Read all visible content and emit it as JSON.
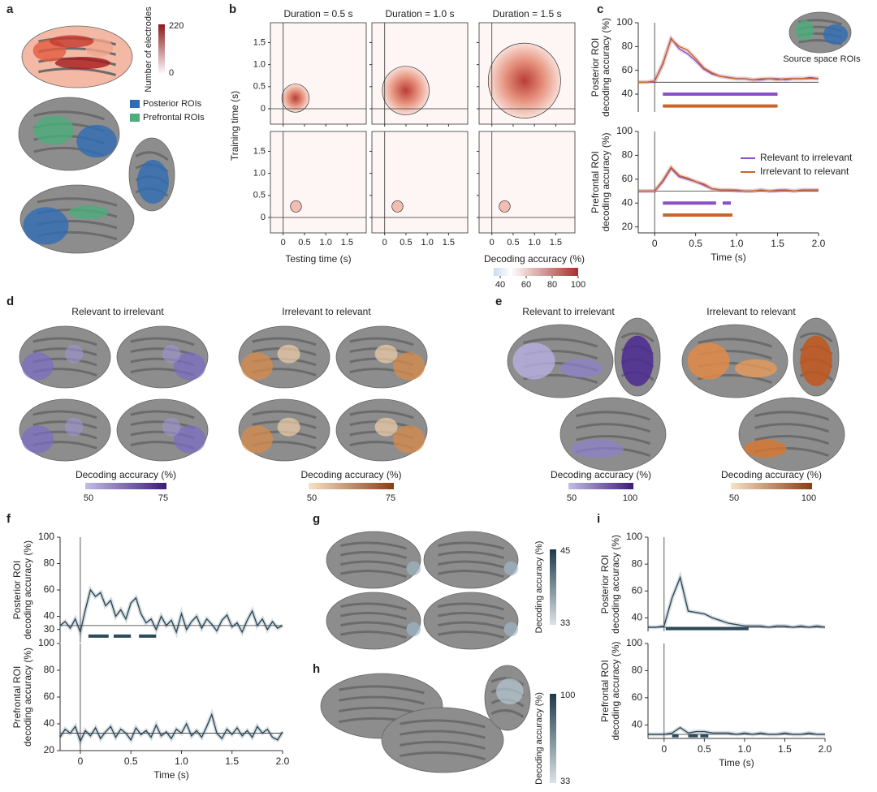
{
  "panel_labels": [
    "a",
    "b",
    "c",
    "d",
    "e",
    "f",
    "g",
    "h",
    "i"
  ],
  "panel_a": {
    "colorbar": {
      "label": "Number of electrodes",
      "ticks": [
        220,
        0
      ]
    },
    "legend": [
      "Posterior ROIs",
      "Prefrontal ROIs"
    ]
  },
  "panel_c_inset": "Source space ROIs",
  "panel_d": {
    "titles": [
      "Relevant to irrelevant",
      "Irrelevant to relevant"
    ],
    "colorbars": [
      {
        "label": "Decoding accuracy (%)",
        "ticks": [
          50,
          75
        ]
      },
      {
        "label": "Decoding accuracy (%)",
        "ticks": [
          50,
          75
        ]
      }
    ]
  },
  "panel_e": {
    "titles": [
      "Relevant to irrelevant",
      "Irrelevant to relevant"
    ],
    "colorbars": [
      {
        "label": "Decoding accuracy (%)",
        "ticks": [
          50,
          100
        ]
      },
      {
        "label": "Decoding accuracy (%)",
        "ticks": [
          50,
          100
        ]
      }
    ]
  },
  "panel_g": {
    "colorbar": {
      "label": "Decoding accuracy (%)",
      "ticks": [
        45,
        33
      ]
    }
  },
  "panel_h": {
    "colorbar": {
      "label": "Decoding accuracy (%)",
      "ticks": [
        100,
        33
      ]
    }
  },
  "chart_data": [
    {
      "type": "heatmap",
      "titles": [
        "Duration = 0.5 s",
        "Duration = 1.0 s",
        "Duration = 1.5 s"
      ],
      "xlabel": "Testing time (s)",
      "ylabel": "Training time (s)",
      "xlim": [
        -0.3,
        1.95
      ],
      "ylim": [
        -0.35,
        1.95
      ],
      "xticks": [
        0,
        0.5,
        {
          "value": 1,
          "label": "1.0"
        },
        1.5
      ],
      "yticks": [
        0,
        0.5,
        {
          "value": 1,
          "label": "1.0"
        },
        1.5
      ],
      "colorbar": {
        "label": "Decoding accuracy (%)",
        "lim": [
          35,
          100
        ],
        "ticks": [
          40,
          60,
          80,
          100
        ]
      }
    },
    {
      "type": "line",
      "ylabel": [
        "Posterior ROI",
        "decoding accuracy (%)"
      ],
      "xlim": [
        -0.2,
        2.0
      ],
      "ylim": [
        25,
        100
      ],
      "yticks": [
        40,
        60,
        80,
        100
      ],
      "chance": 50,
      "onset": 0,
      "x": [
        -0.2,
        -0.1,
        0,
        0.1,
        0.2,
        0.3,
        0.4,
        0.5,
        0.6,
        0.7,
        0.8,
        0.9,
        1.0,
        1.1,
        1.2,
        1.3,
        1.4,
        1.5,
        1.6,
        1.7,
        1.8,
        1.9,
        2.0
      ],
      "series": [
        {
          "name": "Relevant to irrelevant",
          "color": "#8b4fc7",
          "values": [
            50,
            50,
            51,
            65,
            87,
            78,
            74,
            68,
            61,
            57,
            55,
            54,
            53,
            53,
            52,
            52,
            53,
            53,
            52,
            53,
            53,
            54,
            53
          ]
        },
        {
          "name": "Irrelevant to relevant",
          "color": "#c8652a",
          "values": [
            50,
            50,
            51,
            66,
            86,
            80,
            77,
            70,
            62,
            58,
            55,
            54,
            53,
            53,
            52,
            53,
            53,
            52,
            53,
            53,
            53,
            53,
            53
          ]
        }
      ],
      "significance": [
        {
          "color": "#8b4fc7",
          "y": 40,
          "spans": [
            [
              0.1,
              1.5
            ]
          ]
        },
        {
          "color": "#c8652a",
          "y": 30,
          "spans": [
            [
              0.1,
              1.5
            ]
          ]
        }
      ]
    },
    {
      "type": "line",
      "ylabel": [
        "Prefrontal ROI",
        "decoding accuracy (%)"
      ],
      "xlim": [
        -0.2,
        2.0
      ],
      "ylim": [
        15,
        100
      ],
      "yticks": [
        20,
        40,
        60,
        80,
        100
      ],
      "chance": 50,
      "onset": 0,
      "xticks": [
        0,
        0.5,
        {
          "value": 1,
          "label": "1.0"
        },
        1.5,
        {
          "value": 2,
          "label": "2.0"
        }
      ],
      "xlabel": "Time (s)",
      "legend": true,
      "x": [
        -0.2,
        -0.1,
        0,
        0.1,
        0.2,
        0.3,
        0.4,
        0.5,
        0.6,
        0.7,
        0.8,
        0.9,
        1.0,
        1.1,
        1.2,
        1.3,
        1.4,
        1.5,
        1.6,
        1.7,
        1.8,
        1.9,
        2.0
      ],
      "series": [
        {
          "name": "Relevant to irrelevant",
          "color": "#8b4fc7",
          "values": [
            50,
            50,
            50,
            58,
            69,
            62,
            60,
            58,
            55,
            52,
            51,
            51,
            50,
            50,
            50,
            51,
            50,
            50,
            51,
            50,
            51,
            51,
            51
          ]
        },
        {
          "name": "Irrelevant to relevant",
          "color": "#c8652a",
          "values": [
            50,
            50,
            50,
            59,
            70,
            63,
            61,
            58,
            56,
            52,
            51,
            51,
            51,
            50,
            50,
            51,
            50,
            51,
            51,
            50,
            51,
            51,
            51
          ]
        }
      ],
      "significance": [
        {
          "color": "#8b4fc7",
          "y": 40,
          "spans": [
            [
              0.1,
              0.75
            ],
            [
              0.83,
              0.93
            ]
          ]
        },
        {
          "color": "#c8652a",
          "y": 30,
          "spans": [
            [
              0.1,
              0.95
            ]
          ]
        }
      ]
    },
    {
      "type": "line",
      "ylabel": [
        "Posterior ROI",
        "decoding accuracy (%)"
      ],
      "xlim": [
        -0.2,
        2.0
      ],
      "ylim": [
        20,
        100
      ],
      "yticks": [
        30,
        40,
        60,
        80,
        100
      ],
      "chance": 33,
      "onset": 0,
      "x": [
        -0.2,
        -0.15,
        -0.1,
        -0.05,
        0,
        0.05,
        0.1,
        0.15,
        0.2,
        0.25,
        0.3,
        0.35,
        0.4,
        0.45,
        0.5,
        0.55,
        0.6,
        0.65,
        0.7,
        0.75,
        0.8,
        0.85,
        0.9,
        0.95,
        1.0,
        1.05,
        1.1,
        1.15,
        1.2,
        1.25,
        1.3,
        1.35,
        1.4,
        1.45,
        1.5,
        1.55,
        1.6,
        1.65,
        1.7,
        1.75,
        1.8,
        1.85,
        1.9,
        1.95,
        2.0
      ],
      "series": [
        {
          "color": "#2c4a5a",
          "values": [
            33,
            36,
            31,
            38,
            28,
            45,
            60,
            55,
            58,
            48,
            52,
            40,
            45,
            38,
            50,
            54,
            42,
            35,
            38,
            30,
            40,
            33,
            37,
            28,
            42,
            30,
            36,
            40,
            31,
            38,
            34,
            29,
            37,
            41,
            32,
            35,
            28,
            37,
            44,
            33,
            38,
            30,
            36,
            31,
            33
          ]
        }
      ],
      "significance": [
        {
          "color": "#2c4a5a",
          "y": 25,
          "spans": [
            [
              0.08,
              0.28
            ],
            [
              0.33,
              0.5
            ],
            [
              0.58,
              0.75
            ]
          ]
        }
      ]
    },
    {
      "type": "line",
      "ylabel": [
        "Prefrontal ROI",
        "decoding accuracy (%)"
      ],
      "xlim": [
        -0.2,
        2.0
      ],
      "ylim": [
        20,
        100
      ],
      "yticks": [
        20,
        40,
        60,
        80,
        100
      ],
      "chance": 33,
      "onset": 0,
      "xticks": [
        0,
        0.5,
        {
          "value": 1,
          "label": "1.0"
        },
        1.5,
        {
          "value": 2,
          "label": "2.0"
        }
      ],
      "xlabel": "Time (s)",
      "x": [
        -0.2,
        -0.15,
        -0.1,
        -0.05,
        0,
        0.05,
        0.1,
        0.15,
        0.2,
        0.25,
        0.3,
        0.35,
        0.4,
        0.45,
        0.5,
        0.55,
        0.6,
        0.65,
        0.7,
        0.75,
        0.8,
        0.85,
        0.9,
        0.95,
        1.0,
        1.05,
        1.1,
        1.15,
        1.2,
        1.25,
        1.3,
        1.35,
        1.4,
        1.45,
        1.5,
        1.55,
        1.6,
        1.65,
        1.7,
        1.75,
        1.8,
        1.85,
        1.9,
        1.95,
        2.0
      ],
      "series": [
        {
          "color": "#2c4a5a",
          "values": [
            30,
            36,
            33,
            38,
            27,
            35,
            31,
            37,
            29,
            34,
            38,
            30,
            36,
            33,
            28,
            37,
            32,
            35,
            30,
            39,
            31,
            34,
            29,
            36,
            33,
            40,
            31,
            35,
            30,
            38,
            47,
            33,
            29,
            36,
            32,
            37,
            31,
            35,
            30,
            38,
            33,
            36,
            30,
            28,
            34
          ]
        }
      ]
    },
    {
      "type": "line",
      "ylabel": [
        "Posterior ROI",
        "decoding accuracy (%)"
      ],
      "xlim": [
        -0.2,
        2.0
      ],
      "ylim": [
        30,
        100
      ],
      "yticks": [
        40,
        60,
        80,
        100
      ],
      "chance": 33,
      "onset": 0,
      "x": [
        -0.2,
        -0.1,
        0,
        0.1,
        0.2,
        0.3,
        0.4,
        0.5,
        0.6,
        0.7,
        0.8,
        0.9,
        1.0,
        1.1,
        1.2,
        1.3,
        1.4,
        1.5,
        1.6,
        1.7,
        1.8,
        1.9,
        2.0
      ],
      "series": [
        {
          "color": "#2c4a5a",
          "values": [
            33,
            33,
            34,
            55,
            70,
            45,
            44,
            43,
            40,
            38,
            36,
            35,
            34,
            34,
            34,
            33,
            34,
            34,
            33,
            34,
            33,
            34,
            33
          ]
        }
      ],
      "significance": [
        {
          "color": "#2c4a5a",
          "y": 32,
          "spans": [
            [
              0.02,
              1.05
            ]
          ]
        }
      ]
    },
    {
      "type": "line",
      "ylabel": [
        "Prefrontal ROI",
        "decoding accuracy (%)"
      ],
      "xlim": [
        -0.2,
        2.0
      ],
      "ylim": [
        30,
        100
      ],
      "yticks": [
        40,
        60,
        80,
        100
      ],
      "chance": 33,
      "onset": 0,
      "xticks": [
        0,
        0.5,
        {
          "value": 1,
          "label": "1.0"
        },
        1.5,
        {
          "value": 2,
          "label": "2.0"
        }
      ],
      "xlabel": "Time (s)",
      "x": [
        -0.2,
        -0.1,
        0,
        0.1,
        0.2,
        0.3,
        0.4,
        0.5,
        0.6,
        0.7,
        0.8,
        0.9,
        1.0,
        1.1,
        1.2,
        1.3,
        1.4,
        1.5,
        1.6,
        1.7,
        1.8,
        1.9,
        2.0
      ],
      "series": [
        {
          "color": "#2c4a5a",
          "values": [
            33,
            33,
            33,
            34,
            38,
            34,
            35,
            35,
            34,
            34,
            34,
            33,
            34,
            33,
            34,
            33,
            33,
            34,
            33,
            33,
            34,
            33,
            33
          ]
        }
      ],
      "significance": [
        {
          "color": "#2c4a5a",
          "y": 32,
          "spans": [
            [
              0.1,
              0.18
            ],
            [
              0.3,
              0.42
            ],
            [
              0.45,
              0.55
            ]
          ]
        }
      ]
    }
  ]
}
